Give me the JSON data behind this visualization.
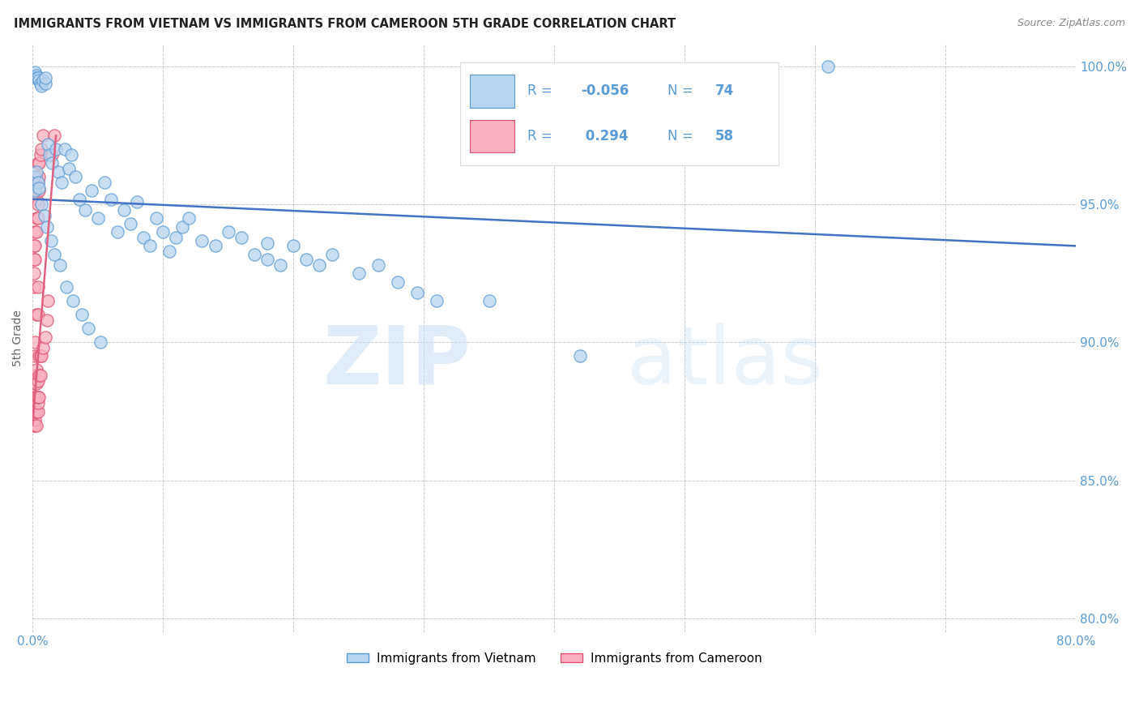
{
  "title": "IMMIGRANTS FROM VIETNAM VS IMMIGRANTS FROM CAMEROON 5TH GRADE CORRELATION CHART",
  "source": "Source: ZipAtlas.com",
  "ylabel": "5th Grade",
  "xlim": [
    0.0,
    0.8
  ],
  "ylim": [
    0.795,
    1.008
  ],
  "xticks": [
    0.0,
    0.1,
    0.2,
    0.3,
    0.4,
    0.5,
    0.6,
    0.7,
    0.8
  ],
  "xticklabels": [
    "0.0%",
    "",
    "",
    "",
    "",
    "",
    "",
    "",
    "80.0%"
  ],
  "yticks": [
    0.8,
    0.85,
    0.9,
    0.95,
    1.0
  ],
  "yticklabels": [
    "80.0%",
    "85.0%",
    "90.0%",
    "95.0%",
    "100.0%"
  ],
  "legend_vietnam_label": "Immigrants from Vietnam",
  "legend_cameroon_label": "Immigrants from Cameroon",
  "R_vietnam": -0.056,
  "N_vietnam": 74,
  "R_cameroon": 0.294,
  "N_cameroon": 58,
  "vietnam_color": "#b8d4f0",
  "cameroon_color": "#f8b0c0",
  "vietnam_edge_color": "#5b9bd5",
  "cameroon_edge_color": "#e05070",
  "vietnam_line_color": "#4472c4",
  "cameroon_line_color": "#e06080",
  "background_color": "#ffffff",
  "watermark_zip": "ZIP",
  "watermark_atlas": "atlas",
  "vietnam_x": [
    0.002,
    0.003,
    0.003,
    0.004,
    0.005,
    0.006,
    0.007,
    0.008,
    0.01,
    0.01,
    0.012,
    0.013,
    0.015,
    0.018,
    0.02,
    0.022,
    0.025,
    0.028,
    0.03,
    0.033,
    0.036,
    0.04,
    0.045,
    0.05,
    0.055,
    0.06,
    0.065,
    0.07,
    0.075,
    0.08,
    0.085,
    0.09,
    0.095,
    0.1,
    0.105,
    0.11,
    0.115,
    0.12,
    0.13,
    0.14,
    0.15,
    0.16,
    0.17,
    0.18,
    0.19,
    0.2,
    0.21,
    0.22,
    0.23,
    0.25,
    0.265,
    0.28,
    0.295,
    0.31,
    0.001,
    0.002,
    0.003,
    0.004,
    0.005,
    0.007,
    0.009,
    0.011,
    0.014,
    0.017,
    0.021,
    0.026,
    0.031,
    0.038,
    0.043,
    0.052,
    0.61,
    0.18,
    0.35,
    0.42
  ],
  "vietnam_y": [
    0.998,
    0.997,
    0.996,
    0.996,
    0.995,
    0.994,
    0.993,
    0.995,
    0.994,
    0.996,
    0.972,
    0.968,
    0.965,
    0.97,
    0.962,
    0.958,
    0.97,
    0.963,
    0.968,
    0.96,
    0.952,
    0.948,
    0.955,
    0.945,
    0.958,
    0.952,
    0.94,
    0.948,
    0.943,
    0.951,
    0.938,
    0.935,
    0.945,
    0.94,
    0.933,
    0.938,
    0.942,
    0.945,
    0.937,
    0.935,
    0.94,
    0.938,
    0.932,
    0.936,
    0.928,
    0.935,
    0.93,
    0.928,
    0.932,
    0.925,
    0.928,
    0.922,
    0.918,
    0.915,
    0.96,
    0.955,
    0.962,
    0.958,
    0.956,
    0.95,
    0.946,
    0.942,
    0.937,
    0.932,
    0.928,
    0.92,
    0.915,
    0.91,
    0.905,
    0.9,
    1.0,
    0.93,
    0.915,
    0.895
  ],
  "cameroon_x": [
    0.001,
    0.001,
    0.001,
    0.001,
    0.001,
    0.001,
    0.001,
    0.001,
    0.001,
    0.001,
    0.002,
    0.002,
    0.002,
    0.002,
    0.002,
    0.002,
    0.002,
    0.002,
    0.002,
    0.002,
    0.003,
    0.003,
    0.003,
    0.003,
    0.003,
    0.003,
    0.003,
    0.003,
    0.003,
    0.003,
    0.004,
    0.004,
    0.004,
    0.004,
    0.004,
    0.004,
    0.004,
    0.004,
    0.004,
    0.004,
    0.005,
    0.005,
    0.005,
    0.005,
    0.005,
    0.005,
    0.006,
    0.006,
    0.006,
    0.007,
    0.007,
    0.008,
    0.008,
    0.01,
    0.011,
    0.012,
    0.015,
    0.017
  ],
  "cameroon_y": [
    0.87,
    0.875,
    0.88,
    0.885,
    0.886,
    0.888,
    0.92,
    0.925,
    0.93,
    0.935,
    0.87,
    0.872,
    0.875,
    0.88,
    0.895,
    0.9,
    0.93,
    0.935,
    0.94,
    0.96,
    0.87,
    0.875,
    0.88,
    0.885,
    0.89,
    0.91,
    0.94,
    0.945,
    0.952,
    0.96,
    0.875,
    0.878,
    0.88,
    0.886,
    0.91,
    0.92,
    0.945,
    0.95,
    0.958,
    0.965,
    0.88,
    0.888,
    0.895,
    0.955,
    0.96,
    0.965,
    0.888,
    0.895,
    0.968,
    0.895,
    0.97,
    0.898,
    0.975,
    0.902,
    0.908,
    0.915,
    0.968,
    0.975
  ],
  "viet_trend_x": [
    0.0,
    0.8
  ],
  "viet_trend_y": [
    0.952,
    0.935
  ],
  "cam_trend_x": [
    0.0,
    0.018
  ],
  "cam_trend_y": [
    0.87,
    0.975
  ]
}
